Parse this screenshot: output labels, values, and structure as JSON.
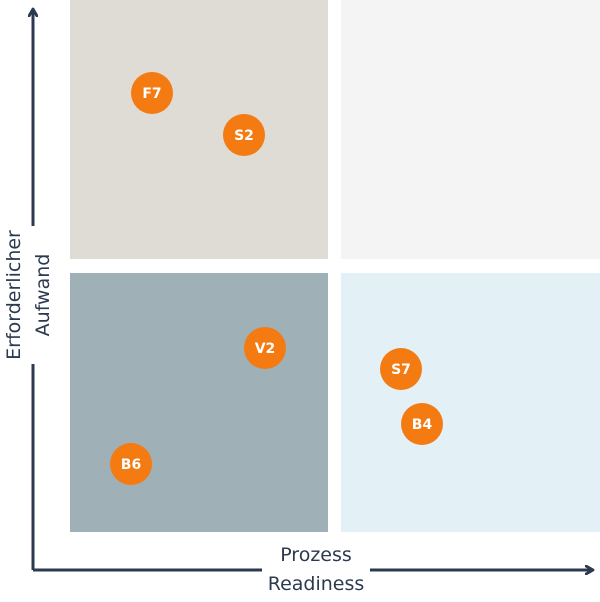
{
  "axes": {
    "x_label_line1": "Prozess",
    "x_label_line2": "Readiness",
    "y_label_line1": "Erforderlicher",
    "y_label_line2": "Aufwand"
  },
  "colors": {
    "axis": "#2b3a4f",
    "marker": "#f47a12",
    "marker_text": "#ffffff",
    "quadrant_top_left": "#dedcd5",
    "quadrant_top_right": "#f4f4f4",
    "quadrant_bottom_left": "#9fb0b7",
    "quadrant_bottom_right": "#e3f0f5"
  },
  "quadrants": [
    {
      "id": "top-left",
      "color_key": "quadrant_top_left"
    },
    {
      "id": "top-right",
      "color_key": "quadrant_top_right"
    },
    {
      "id": "bottom-left",
      "color_key": "quadrant_bottom_left"
    },
    {
      "id": "bottom-right",
      "color_key": "quadrant_bottom_right"
    }
  ],
  "items": [
    {
      "label": "F7"
    },
    {
      "label": "S2"
    },
    {
      "label": "V2"
    },
    {
      "label": "B6"
    },
    {
      "label": "S7"
    },
    {
      "label": "B4"
    }
  ]
}
